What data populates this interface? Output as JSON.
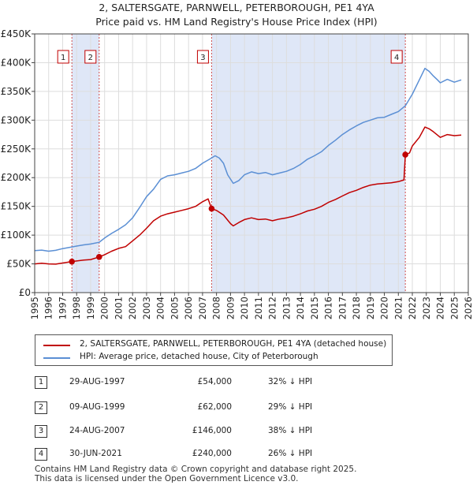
{
  "title_line1": "2, SALTERSGATE, PARNWELL, PETERBOROUGH, PE1 4YA",
  "title_line2": "Price paid vs. HM Land Registry's House Price Index (HPI)",
  "colors": {
    "red": "#c00000",
    "blue": "#5b8fd4",
    "band": "#dfe7f7",
    "grid": "#dddddd"
  },
  "chart_data": {
    "type": "line",
    "xlim": [
      1995,
      2026
    ],
    "ylim": [
      0,
      450000
    ],
    "y_ticks": [
      0,
      50000,
      100000,
      150000,
      200000,
      250000,
      300000,
      350000,
      400000,
      450000
    ],
    "y_tick_labels": [
      "£0",
      "£50K",
      "£100K",
      "£150K",
      "£200K",
      "£250K",
      "£300K",
      "£350K",
      "£400K",
      "£450K"
    ],
    "x_ticks": [
      1995,
      1996,
      1997,
      1998,
      1999,
      2000,
      2001,
      2002,
      2003,
      2004,
      2005,
      2006,
      2007,
      2008,
      2009,
      2010,
      2011,
      2012,
      2013,
      2014,
      2015,
      2016,
      2017,
      2018,
      2019,
      2020,
      2021,
      2022,
      2023,
      2024,
      2025,
      2026
    ],
    "shaded_periods": [
      [
        1997.66,
        1999.61
      ],
      [
        2007.65,
        2021.5
      ]
    ],
    "series": [
      {
        "name": "2, SALTERSGATE, PARNWELL, PETERBOROUGH, PE1 4YA (detached house)",
        "color": "#c00000",
        "points": [
          [
            1995.0,
            50000
          ],
          [
            1995.5,
            51000
          ],
          [
            1996.0,
            50000
          ],
          [
            1996.5,
            49500
          ],
          [
            1997.0,
            51500
          ],
          [
            1997.66,
            54000
          ],
          [
            1998.0,
            55000
          ],
          [
            1998.5,
            56500
          ],
          [
            1999.0,
            57500
          ],
          [
            1999.61,
            62000
          ],
          [
            2000.0,
            66000
          ],
          [
            2000.5,
            72000
          ],
          [
            2001.0,
            77000
          ],
          [
            2001.5,
            80000
          ],
          [
            2002.0,
            90000
          ],
          [
            2002.5,
            100000
          ],
          [
            2003.0,
            112000
          ],
          [
            2003.5,
            125000
          ],
          [
            2004.0,
            133000
          ],
          [
            2004.5,
            137000
          ],
          [
            2005.0,
            140000
          ],
          [
            2005.5,
            143000
          ],
          [
            2006.0,
            146000
          ],
          [
            2006.5,
            150000
          ],
          [
            2007.0,
            158000
          ],
          [
            2007.4,
            163000
          ],
          [
            2007.65,
            146000
          ],
          [
            2008.0,
            143000
          ],
          [
            2008.5,
            135000
          ],
          [
            2009.0,
            120000
          ],
          [
            2009.2,
            116000
          ],
          [
            2009.6,
            122000
          ],
          [
            2010.0,
            127000
          ],
          [
            2010.5,
            130000
          ],
          [
            2011.0,
            127000
          ],
          [
            2011.5,
            128000
          ],
          [
            2012.0,
            125000
          ],
          [
            2012.5,
            128000
          ],
          [
            2013.0,
            130000
          ],
          [
            2013.5,
            133000
          ],
          [
            2014.0,
            137000
          ],
          [
            2014.5,
            142000
          ],
          [
            2015.0,
            145000
          ],
          [
            2015.5,
            150000
          ],
          [
            2016.0,
            157000
          ],
          [
            2016.5,
            162000
          ],
          [
            2017.0,
            168000
          ],
          [
            2017.5,
            174000
          ],
          [
            2018.0,
            178000
          ],
          [
            2018.5,
            183000
          ],
          [
            2019.0,
            187000
          ],
          [
            2019.5,
            189000
          ],
          [
            2020.0,
            190000
          ],
          [
            2020.5,
            191000
          ],
          [
            2021.0,
            193000
          ],
          [
            2021.4,
            196000
          ],
          [
            2021.5,
            240000
          ],
          [
            2021.8,
            243000
          ],
          [
            2022.0,
            255000
          ],
          [
            2022.5,
            270000
          ],
          [
            2022.9,
            288000
          ],
          [
            2023.2,
            285000
          ],
          [
            2023.5,
            280000
          ],
          [
            2023.8,
            274000
          ],
          [
            2024.0,
            270000
          ],
          [
            2024.5,
            275000
          ],
          [
            2025.0,
            273000
          ],
          [
            2025.5,
            274000
          ]
        ]
      },
      {
        "name": "HPI: Average price, detached house, City of Peterborough",
        "color": "#5b8fd4",
        "points": [
          [
            1995.0,
            73000
          ],
          [
            1995.5,
            74000
          ],
          [
            1996.0,
            72000
          ],
          [
            1996.5,
            73500
          ],
          [
            1997.0,
            76500
          ],
          [
            1997.66,
            79500
          ],
          [
            1998.0,
            81000
          ],
          [
            1998.5,
            83000
          ],
          [
            1999.0,
            84500
          ],
          [
            1999.61,
            87500
          ],
          [
            2000.0,
            95000
          ],
          [
            2000.5,
            103000
          ],
          [
            2001.0,
            110000
          ],
          [
            2001.5,
            118000
          ],
          [
            2002.0,
            130000
          ],
          [
            2002.5,
            148000
          ],
          [
            2003.0,
            167000
          ],
          [
            2003.5,
            180000
          ],
          [
            2004.0,
            197000
          ],
          [
            2004.5,
            203000
          ],
          [
            2005.0,
            205000
          ],
          [
            2005.5,
            208000
          ],
          [
            2006.0,
            211000
          ],
          [
            2006.5,
            216000
          ],
          [
            2007.0,
            225000
          ],
          [
            2007.5,
            232000
          ],
          [
            2007.9,
            238000
          ],
          [
            2008.2,
            234000
          ],
          [
            2008.5,
            225000
          ],
          [
            2008.8,
            205000
          ],
          [
            2009.2,
            190000
          ],
          [
            2009.6,
            195000
          ],
          [
            2010.0,
            205000
          ],
          [
            2010.5,
            210000
          ],
          [
            2011.0,
            207000
          ],
          [
            2011.5,
            209000
          ],
          [
            2012.0,
            205000
          ],
          [
            2012.5,
            208000
          ],
          [
            2013.0,
            211000
          ],
          [
            2013.5,
            216000
          ],
          [
            2014.0,
            223000
          ],
          [
            2014.5,
            232000
          ],
          [
            2015.0,
            238000
          ],
          [
            2015.5,
            245000
          ],
          [
            2016.0,
            256000
          ],
          [
            2016.5,
            265000
          ],
          [
            2017.0,
            275000
          ],
          [
            2017.5,
            283000
          ],
          [
            2018.0,
            290000
          ],
          [
            2018.5,
            296000
          ],
          [
            2019.0,
            300000
          ],
          [
            2019.5,
            304000
          ],
          [
            2020.0,
            305000
          ],
          [
            2020.5,
            310000
          ],
          [
            2021.0,
            315000
          ],
          [
            2021.5,
            325000
          ],
          [
            2022.0,
            345000
          ],
          [
            2022.5,
            370000
          ],
          [
            2022.9,
            390000
          ],
          [
            2023.2,
            385000
          ],
          [
            2023.5,
            377000
          ],
          [
            2023.8,
            370000
          ],
          [
            2024.0,
            365000
          ],
          [
            2024.5,
            371000
          ],
          [
            2025.0,
            366000
          ],
          [
            2025.5,
            370000
          ]
        ]
      }
    ],
    "markers": [
      {
        "label": "1",
        "x": 1997.66,
        "y": 54000
      },
      {
        "label": "2",
        "x": 1999.61,
        "y": 62000
      },
      {
        "label": "3",
        "x": 2007.65,
        "y": 146000
      },
      {
        "label": "4",
        "x": 2021.5,
        "y": 240000
      }
    ]
  },
  "legend": {
    "red_label": "2, SALTERSGATE, PARNWELL, PETERBOROUGH, PE1 4YA (detached house)",
    "blue_label": "HPI: Average price, detached house, City of Peterborough"
  },
  "transactions": [
    {
      "num": "1",
      "date": "29-AUG-1997",
      "price": "£54,000",
      "hpi": "32% ↓ HPI"
    },
    {
      "num": "2",
      "date": "09-AUG-1999",
      "price": "£62,000",
      "hpi": "29% ↓ HPI"
    },
    {
      "num": "3",
      "date": "24-AUG-2007",
      "price": "£146,000",
      "hpi": "38% ↓ HPI"
    },
    {
      "num": "4",
      "date": "30-JUN-2021",
      "price": "£240,000",
      "hpi": "26% ↓ HPI"
    }
  ],
  "footer": {
    "line1": "Contains HM Land Registry data © Crown copyright and database right 2025.",
    "line2": "This data is licensed under the Open Government Licence v3.0."
  }
}
